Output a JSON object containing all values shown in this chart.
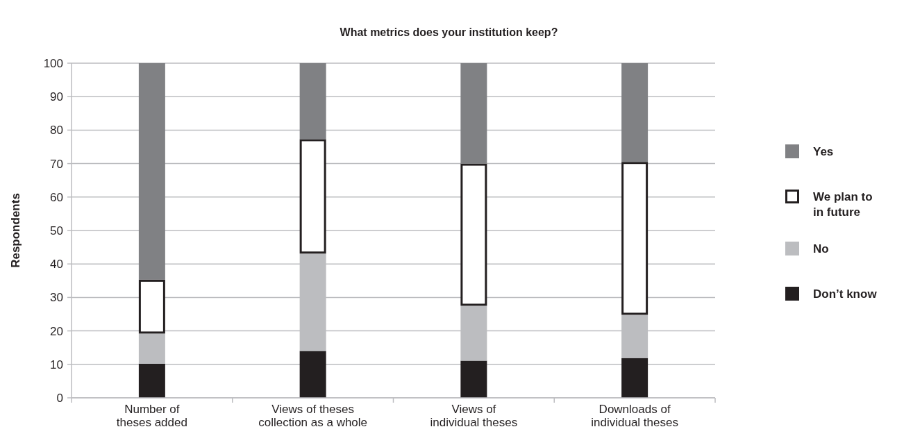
{
  "chart_data": {
    "type": "bar",
    "title": "What metrics does your institution keep?",
    "ylabel": "Respondents",
    "categories": [
      "Number of theses added",
      "Views of theses collection as a whole",
      "Views of individual theses",
      "Downloads of individual theses"
    ],
    "stacked": true,
    "ylim": [
      0,
      100
    ],
    "yticks": [
      0,
      10,
      20,
      30,
      40,
      50,
      60,
      70,
      80,
      90,
      100
    ],
    "grid": "y",
    "legend": "right",
    "series": [
      {
        "name": "Don’t know",
        "color": "#231f20",
        "values": [
          10.2,
          14.0,
          11.1,
          11.9
        ]
      },
      {
        "name": "No",
        "color": "#bcbdc0",
        "values": [
          9.0,
          29.1,
          16.4,
          12.9
        ]
      },
      {
        "name": "We plan to in future",
        "color": "#ffffff",
        "values": [
          16.1,
          34.2,
          42.5,
          45.7
        ]
      },
      {
        "name": "Yes",
        "color": "#808184",
        "values": [
          64.7,
          22.7,
          30.0,
          29.5
        ]
      }
    ]
  }
}
